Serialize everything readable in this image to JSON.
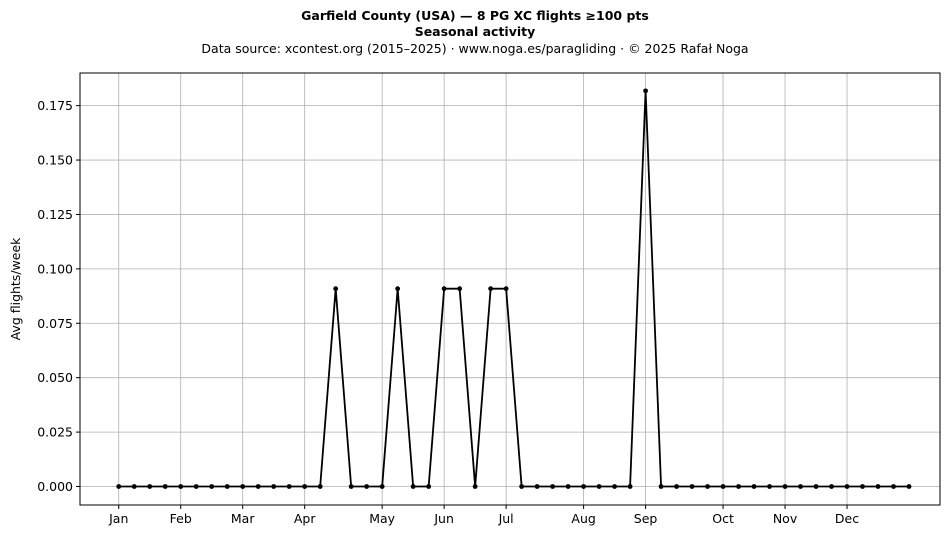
{
  "chart_data": {
    "type": "line",
    "title": "Garfield County (USA)  —  8 PG XC flights ≥100 pts",
    "subtitle": "Seasonal activity",
    "source": "Data source: xcontest.org (2015–2025)  ·  www.noga.es/paragliding  ·  © 2025 Rafał Noga",
    "xlabel": "",
    "ylabel": "Avg flights/week",
    "x_unit": "week of year",
    "xlim": [
      -1.5,
      54.0
    ],
    "ylim": [
      -0.0085,
      0.19
    ],
    "grid": true,
    "month_ticks": [
      {
        "label": "Jan",
        "week": 1
      },
      {
        "label": "Feb",
        "week": 5
      },
      {
        "label": "Mar",
        "week": 9
      },
      {
        "label": "Apr",
        "week": 13
      },
      {
        "label": "May",
        "week": 18
      },
      {
        "label": "Jun",
        "week": 22
      },
      {
        "label": "Jul",
        "week": 26
      },
      {
        "label": "Aug",
        "week": 31
      },
      {
        "label": "Sep",
        "week": 35
      },
      {
        "label": "Oct",
        "week": 40
      },
      {
        "label": "Nov",
        "week": 44
      },
      {
        "label": "Dec",
        "week": 48
      }
    ],
    "y_ticks": [
      "0.000",
      "0.025",
      "0.050",
      "0.075",
      "0.100",
      "0.125",
      "0.150",
      "0.175"
    ],
    "series": [
      {
        "name": "",
        "color": "#000000",
        "x": [
          1,
          2,
          3,
          4,
          5,
          6,
          7,
          8,
          9,
          10,
          11,
          12,
          13,
          14,
          15,
          16,
          17,
          18,
          19,
          20,
          21,
          22,
          23,
          24,
          25,
          26,
          27,
          28,
          29,
          30,
          31,
          32,
          33,
          34,
          35,
          36,
          37,
          38,
          39,
          40,
          41,
          42,
          43,
          44,
          45,
          46,
          47,
          48,
          49,
          50,
          51,
          52
        ],
        "values": [
          0,
          0,
          0,
          0,
          0,
          0,
          0,
          0,
          0,
          0,
          0,
          0,
          0,
          0,
          0.0909,
          0,
          0,
          0,
          0.0909,
          0,
          0,
          0.0909,
          0.0909,
          0,
          0.0909,
          0.0909,
          0,
          0,
          0,
          0,
          0,
          0,
          0,
          0,
          0.1818,
          0,
          0,
          0,
          0,
          0,
          0,
          0,
          0,
          0,
          0,
          0,
          0,
          0,
          0,
          0,
          0,
          0
        ]
      }
    ]
  }
}
